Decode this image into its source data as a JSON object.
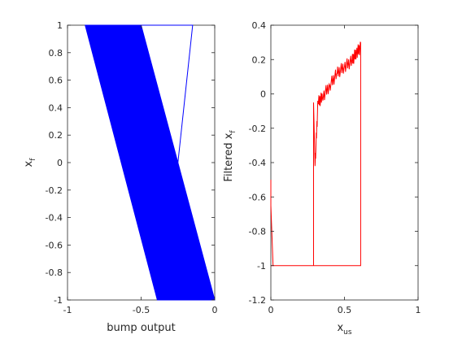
{
  "chart_data": [
    {
      "type": "line",
      "xlabel": "bump output",
      "ylabel_main": "x",
      "ylabel_sub": "f",
      "xlim": [
        -1,
        0
      ],
      "ylim": [
        -1,
        1
      ],
      "xticks": [
        "-1",
        "-0.5",
        "0"
      ],
      "yticks": [
        "1",
        "0.8",
        "0.6",
        "0.4",
        "0.2",
        "0",
        "-0.2",
        "-0.4",
        "-0.6",
        "-0.8",
        "-1"
      ],
      "grid": false,
      "series_color": "#0000ff",
      "band": {
        "top": {
          "y": 1,
          "x": [
            -0.88,
            -0.5
          ]
        },
        "bottom": {
          "y": -1,
          "x": [
            -0.39,
            0.0
          ]
        }
      },
      "outline": [
        [
          -0.5,
          1
        ],
        [
          -0.15,
          1
        ],
        [
          -0.25,
          0
        ]
      ]
    },
    {
      "type": "line",
      "xlabel_main": "x",
      "xlabel_sub": "us",
      "ylabel_main": "Filtered x",
      "ylabel_sub": "f",
      "xlim": [
        0,
        1
      ],
      "ylim": [
        -1.2,
        0.4
      ],
      "xticks": [
        "0",
        "0.5",
        "1"
      ],
      "yticks": [
        "0.4",
        "0.2",
        "0",
        "-0.2",
        "-0.4",
        "-0.6",
        "-0.8",
        "-1",
        "-1.2"
      ],
      "grid": false,
      "series_color": "#ff0000",
      "series": [
        {
          "x": [
            0.0,
            0.0,
            0.015,
            0.29,
            0.29,
            0.29,
            0.3,
            0.32,
            0.35,
            0.4,
            0.45,
            0.5,
            0.55,
            0.58,
            0.61,
            0.61,
            0.61,
            0.015,
            0.0
          ],
          "y": [
            -0.5,
            -0.65,
            -1.0,
            -1.0,
            -0.2,
            -0.05,
            -0.42,
            -0.05,
            -0.02,
            0.05,
            0.12,
            0.16,
            0.19,
            0.24,
            0.27,
            0.3,
            -1.0,
            -1.0,
            -1.0
          ]
        }
      ]
    }
  ]
}
